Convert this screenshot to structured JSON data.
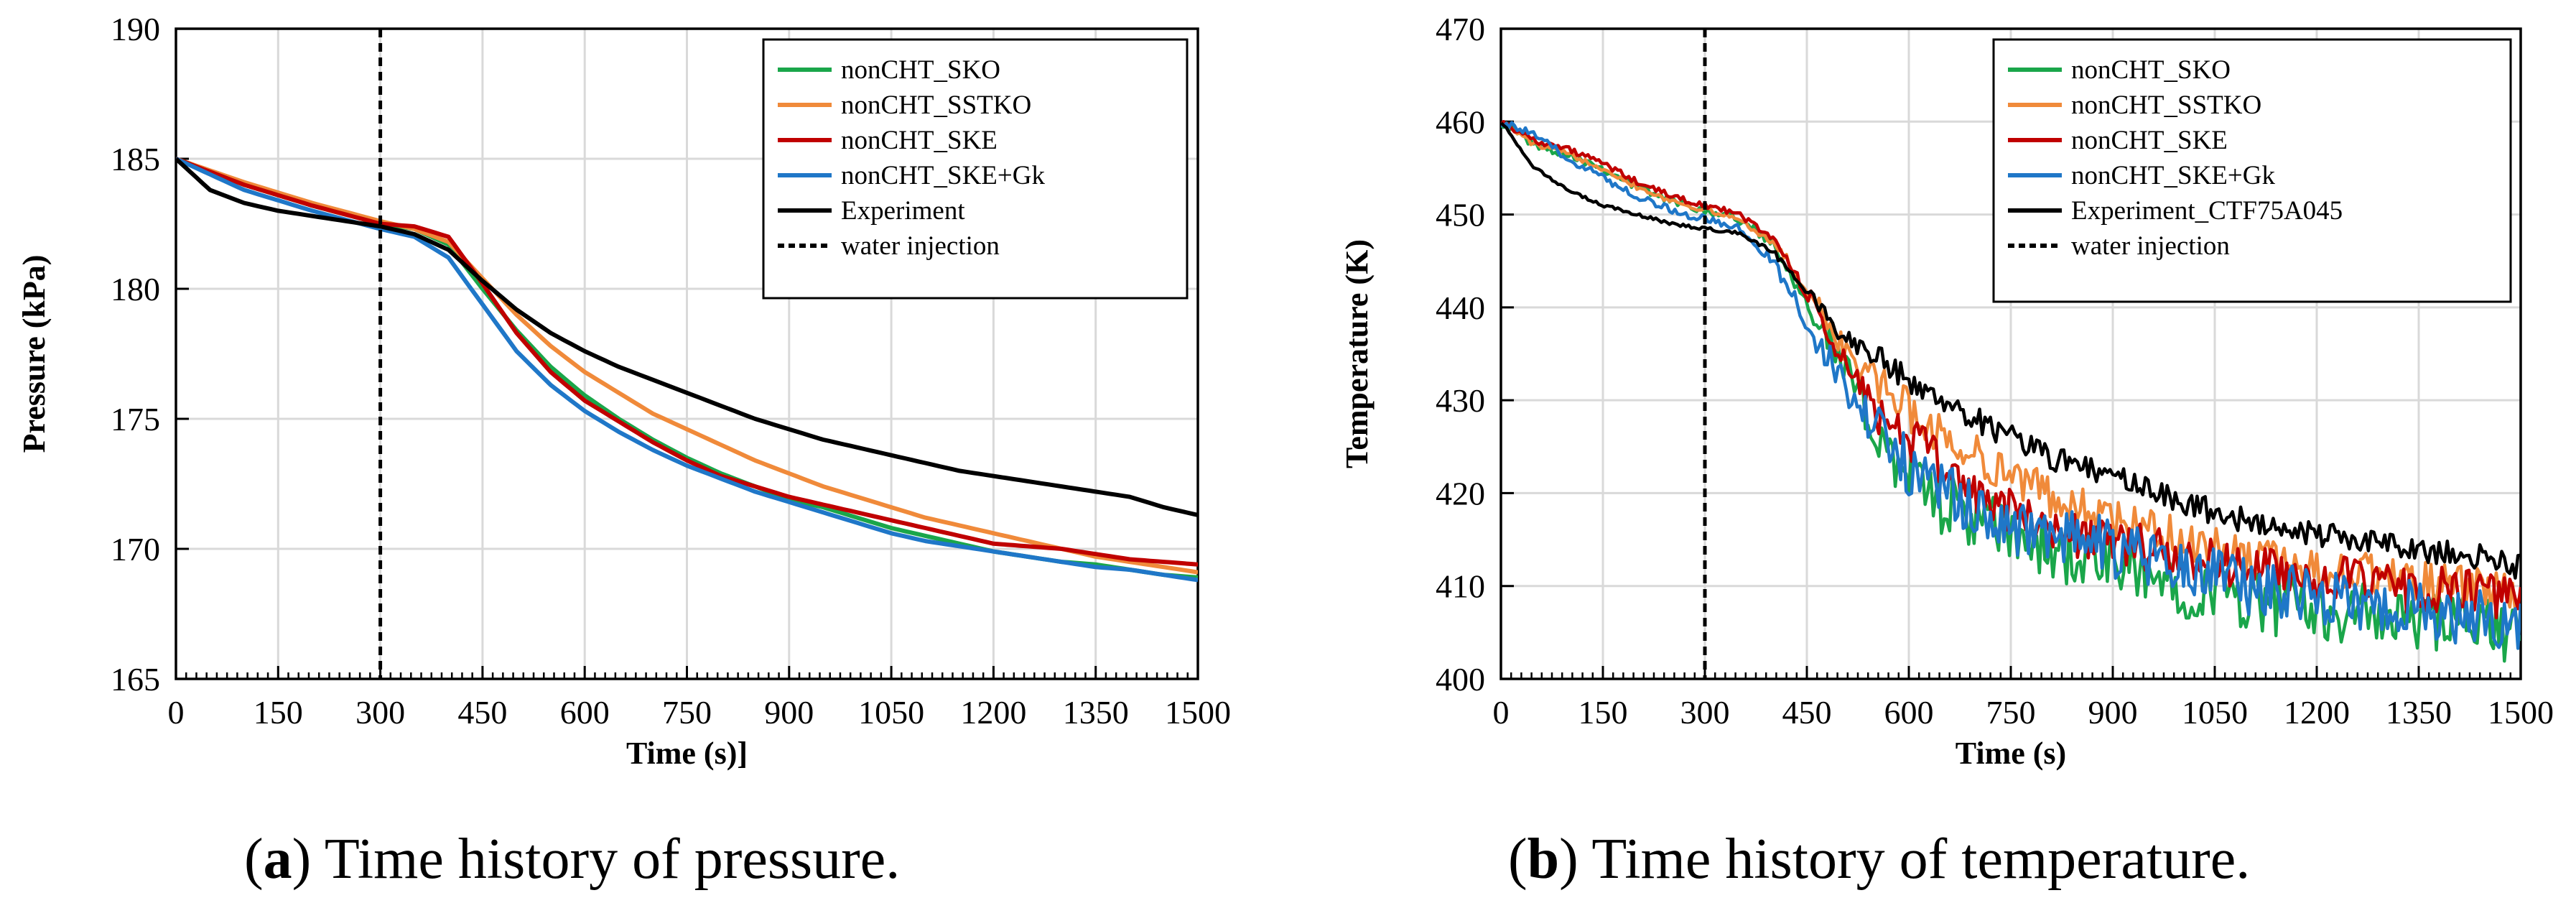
{
  "chart_data": [
    {
      "type": "line",
      "ylabel": "Pressure  (kPa)",
      "xlabel": "Time  (s)]",
      "caption": {
        "pre": "(",
        "letter": "a",
        "post": ") Time history of pressure."
      },
      "xlim": [
        0,
        1500
      ],
      "ylim": [
        165,
        190
      ],
      "xticks": [
        0,
        150,
        300,
        450,
        600,
        750,
        900,
        1050,
        1200,
        1350,
        1500
      ],
      "yticks": [
        165,
        170,
        175,
        180,
        185,
        190
      ],
      "vline": {
        "x": 300,
        "label": "water injection"
      },
      "series": [
        {
          "name": "nonCHT_SKO",
          "color": "#1aa64a",
          "noise": 0,
          "x": [
            0,
            100,
            200,
            300,
            350,
            400,
            450,
            500,
            550,
            600,
            650,
            700,
            750,
            800,
            850,
            900,
            950,
            1000,
            1050,
            1100,
            1150,
            1200,
            1250,
            1300,
            1350,
            1400,
            1450,
            1500
          ],
          "y": [
            185,
            184.0,
            183.2,
            182.5,
            182.3,
            181.7,
            180.0,
            178.4,
            177.0,
            175.9,
            175.0,
            174.2,
            173.5,
            172.9,
            172.4,
            171.9,
            171.6,
            171.2,
            170.8,
            170.5,
            170.2,
            169.9,
            169.7,
            169.5,
            169.4,
            169.2,
            169.0,
            168.9
          ]
        },
        {
          "name": "nonCHT_SSTKO",
          "color": "#f08a3a",
          "noise": 0,
          "x": [
            0,
            100,
            200,
            300,
            350,
            400,
            450,
            500,
            550,
            600,
            650,
            700,
            750,
            800,
            850,
            900,
            950,
            1000,
            1050,
            1100,
            1150,
            1200,
            1250,
            1300,
            1350,
            1400,
            1450,
            1500
          ],
          "y": [
            185,
            184.1,
            183.3,
            182.6,
            182.3,
            181.8,
            180.4,
            179.0,
            177.8,
            176.8,
            176.0,
            175.2,
            174.6,
            174.0,
            173.4,
            172.9,
            172.4,
            172.0,
            171.6,
            171.2,
            170.9,
            170.6,
            170.3,
            170.0,
            169.7,
            169.5,
            169.3,
            169.1
          ]
        },
        {
          "name": "nonCHT_SKE",
          "color": "#c00000",
          "noise": 0,
          "x": [
            0,
            100,
            200,
            300,
            350,
            400,
            450,
            500,
            550,
            600,
            650,
            700,
            750,
            800,
            850,
            900,
            950,
            1000,
            1050,
            1100,
            1150,
            1200,
            1250,
            1300,
            1350,
            1400,
            1450,
            1500
          ],
          "y": [
            185,
            184.0,
            183.2,
            182.5,
            182.4,
            182.0,
            180.2,
            178.3,
            176.8,
            175.7,
            174.9,
            174.1,
            173.4,
            172.8,
            172.4,
            172.0,
            171.7,
            171.4,
            171.1,
            170.8,
            170.5,
            170.2,
            170.1,
            170.0,
            169.8,
            169.6,
            169.5,
            169.4
          ]
        },
        {
          "name": "nonCHT_SKE+Gk",
          "color": "#1f77c8",
          "noise": 0,
          "x": [
            0,
            100,
            200,
            300,
            350,
            400,
            450,
            500,
            550,
            600,
            650,
            700,
            750,
            800,
            850,
            900,
            950,
            1000,
            1050,
            1100,
            1150,
            1200,
            1250,
            1300,
            1350,
            1400,
            1450,
            1500
          ],
          "y": [
            185,
            183.8,
            183.0,
            182.3,
            182.0,
            181.2,
            179.4,
            177.6,
            176.3,
            175.3,
            174.5,
            173.8,
            173.2,
            172.7,
            172.2,
            171.8,
            171.4,
            171.0,
            170.6,
            170.3,
            170.1,
            169.9,
            169.7,
            169.5,
            169.3,
            169.2,
            169.0,
            168.8
          ]
        },
        {
          "name": "Experiment",
          "color": "#000000",
          "noise": 0,
          "x": [
            0,
            50,
            100,
            150,
            200,
            250,
            300,
            350,
            400,
            450,
            500,
            550,
            600,
            650,
            700,
            750,
            800,
            850,
            900,
            950,
            1000,
            1050,
            1100,
            1150,
            1200,
            1250,
            1300,
            1350,
            1400,
            1450,
            1500
          ],
          "y": [
            185,
            183.8,
            183.3,
            183.0,
            182.8,
            182.6,
            182.4,
            182.1,
            181.5,
            180.3,
            179.2,
            178.3,
            177.6,
            177.0,
            176.5,
            176.0,
            175.5,
            175.0,
            174.6,
            174.2,
            173.9,
            173.6,
            173.3,
            173.0,
            172.8,
            172.6,
            172.4,
            172.2,
            172.0,
            171.6,
            171.3
          ]
        }
      ]
    },
    {
      "type": "line",
      "ylabel": "Temperature  (K)",
      "xlabel": "Time  (s)",
      "caption": {
        "pre": "(",
        "letter": "b",
        "post": ") Time history of temperature."
      },
      "xlim": [
        0,
        1500
      ],
      "ylim": [
        400,
        470
      ],
      "xticks": [
        0,
        150,
        300,
        450,
        600,
        750,
        900,
        1050,
        1200,
        1350,
        1500
      ],
      "yticks": [
        400,
        410,
        420,
        430,
        440,
        450,
        460,
        470
      ],
      "vline": {
        "x": 300,
        "label": "water injection"
      },
      "series": [
        {
          "name": "nonCHT_SKO",
          "color": "#1aa64a",
          "noise": 3.0,
          "x": [
            0,
            50,
            100,
            150,
            200,
            250,
            300,
            350,
            400,
            450,
            500,
            550,
            600,
            650,
            700,
            750,
            800,
            850,
            900,
            950,
            1000,
            1050,
            1100,
            1150,
            1200,
            1250,
            1300,
            1350,
            1400,
            1450,
            1500
          ],
          "y": [
            460,
            457.5,
            456.5,
            455,
            453,
            451.5,
            450.5,
            449.5,
            447,
            441,
            434,
            427,
            422,
            419,
            417,
            415.5,
            414,
            413,
            412,
            411,
            410,
            409.5,
            408.5,
            408,
            407.5,
            407,
            406.5,
            406,
            406,
            405.5,
            405
          ]
        },
        {
          "name": "nonCHT_SSTKO",
          "color": "#f08a3a",
          "noise": 2.0,
          "x": [
            0,
            50,
            100,
            150,
            200,
            250,
            300,
            350,
            400,
            450,
            500,
            550,
            600,
            650,
            700,
            750,
            800,
            850,
            900,
            950,
            1000,
            1050,
            1100,
            1150,
            1200,
            1250,
            1300,
            1350,
            1400,
            1450,
            1500
          ],
          "y": [
            460,
            457.5,
            456.5,
            455,
            453,
            451.5,
            450.5,
            449.5,
            447,
            442,
            436,
            432,
            429,
            426,
            424,
            422,
            420,
            418.5,
            417,
            416,
            415,
            414,
            413,
            412.5,
            412,
            411.5,
            411,
            410.5,
            410,
            409.5,
            409
          ]
        },
        {
          "name": "nonCHT_SKE",
          "color": "#c00000",
          "noise": 2.2,
          "x": [
            0,
            50,
            100,
            150,
            200,
            250,
            300,
            350,
            400,
            450,
            500,
            550,
            600,
            650,
            700,
            750,
            800,
            850,
            900,
            950,
            1000,
            1050,
            1100,
            1150,
            1200,
            1250,
            1300,
            1350,
            1400,
            1450,
            1500
          ],
          "y": [
            460,
            458,
            457,
            455.5,
            453.5,
            452,
            451,
            450,
            447.5,
            441.5,
            434.5,
            429,
            426,
            423,
            420,
            418,
            416.5,
            415.5,
            415,
            414,
            413,
            412.5,
            412,
            411.5,
            411,
            410.5,
            410,
            409.5,
            409.5,
            409,
            409
          ]
        },
        {
          "name": "nonCHT_SKE+Gk",
          "color": "#1f77c8",
          "noise": 2.8,
          "x": [
            0,
            50,
            100,
            150,
            200,
            250,
            300,
            350,
            400,
            450,
            500,
            550,
            600,
            650,
            700,
            750,
            800,
            850,
            900,
            950,
            1000,
            1050,
            1100,
            1150,
            1200,
            1250,
            1300,
            1350,
            1400,
            1450,
            1500
          ],
          "y": [
            460,
            458.5,
            456,
            454,
            452,
            450.5,
            449.5,
            448.5,
            445,
            438.5,
            432,
            427,
            423,
            420,
            418,
            416.5,
            415.5,
            415,
            414,
            413,
            412,
            411,
            410,
            409.5,
            409,
            408.5,
            408,
            407.5,
            407,
            406.5,
            406
          ]
        },
        {
          "name": "Experiment_CTF75A045",
          "color": "#000000",
          "noise": 1.2,
          "x": [
            0,
            50,
            100,
            150,
            200,
            250,
            300,
            350,
            400,
            450,
            500,
            550,
            600,
            650,
            700,
            750,
            800,
            850,
            900,
            950,
            1000,
            1050,
            1100,
            1150,
            1200,
            1250,
            1300,
            1350,
            1400,
            1450,
            1500
          ],
          "y": [
            460,
            455,
            452.5,
            451,
            450,
            449,
            448.5,
            448,
            446,
            442,
            437,
            435,
            432,
            430,
            428,
            426,
            424,
            423,
            422,
            420.5,
            419,
            418,
            417,
            416,
            415.5,
            415,
            414.5,
            414,
            413.5,
            413,
            412
          ]
        }
      ]
    }
  ]
}
